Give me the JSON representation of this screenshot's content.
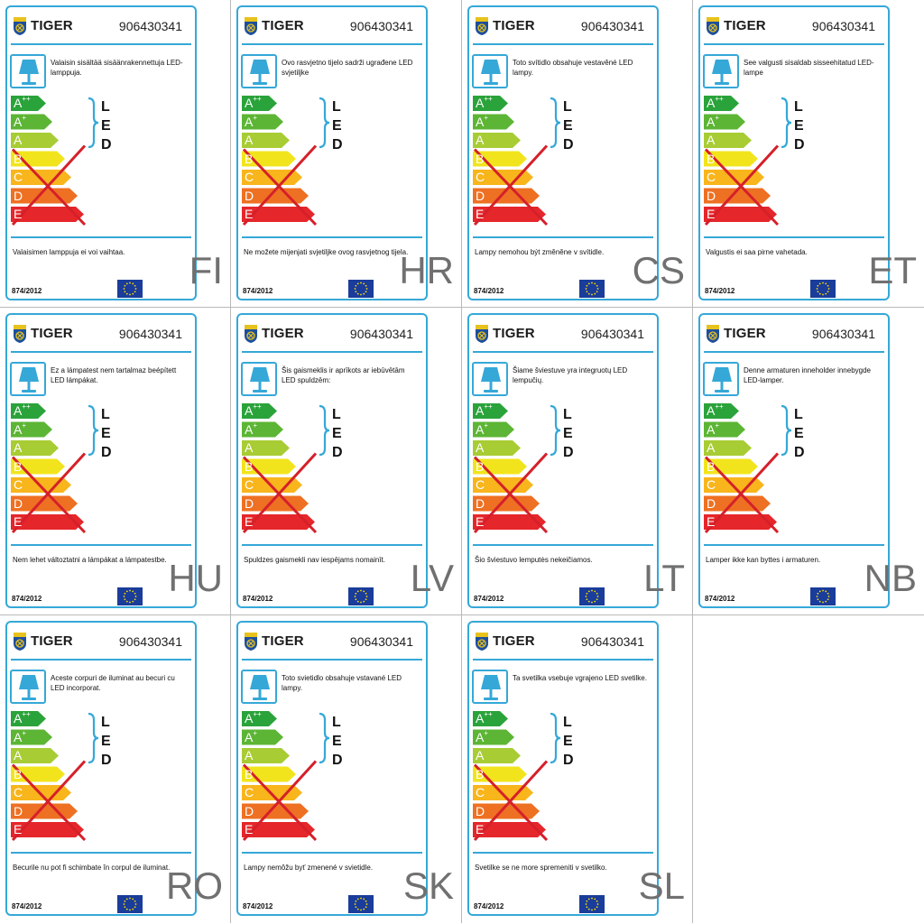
{
  "brand": "TIGER",
  "code": "906430341",
  "regulation": "874/2012",
  "led_letters": [
    "L",
    "E",
    "D"
  ],
  "classes": [
    {
      "letter": "A",
      "sup": "++",
      "color": "#2aa33a"
    },
    {
      "letter": "A",
      "sup": "+",
      "color": "#5cb534"
    },
    {
      "letter": "A",
      "sup": "",
      "color": "#a8cc34"
    },
    {
      "letter": "B",
      "sup": "",
      "color": "#f2e41c"
    },
    {
      "letter": "C",
      "sup": "",
      "color": "#f8b51c"
    },
    {
      "letter": "D",
      "sup": "",
      "color": "#ee7022"
    },
    {
      "letter": "E",
      "sup": "",
      "color": "#e5262a"
    }
  ],
  "colors": {
    "frame": "#35a8d8",
    "cross": "#d5202a",
    "eu_flag": "#1a3c9a",
    "eu_stars": "#ffde00"
  },
  "labels": [
    {
      "lang": "FI",
      "text": "Valaisin sisältää sisäänrakennettuja LED-lamppuja.",
      "notice": "Valaisimen lamppuja ei voi vaihtaa."
    },
    {
      "lang": "HR",
      "text": "Ovo rasvjetno tijelo sadrži ugrađene LED svjetiljke",
      "notice": "Ne možete mijenjati svjetiljke ovog rasvjetnog tijela."
    },
    {
      "lang": "CS",
      "text": "Toto svítidlo obsahuje vestavěné LED lampy.",
      "notice": "Lampy nemohou být změněne v svítidle."
    },
    {
      "lang": "ET",
      "text": "See valgusti sisaldab sisseehitatud LED-lampe",
      "notice": "Valgustis ei saa pirne vahetada."
    },
    {
      "lang": "HU",
      "text": "Ez a lámpatest nem tartalmaz beépített LED lámpákat.",
      "notice": "Nem lehet változtatni a lámpákat a lámpatestbe."
    },
    {
      "lang": "LV",
      "text": "Šis gaismeklis ir aprīkots ar iebūvētām LED spuldzēm:",
      "notice": "Spuldzes gaismekli nav iespējams nomainīt."
    },
    {
      "lang": "LT",
      "text": "Šiame šviestuve yra integruotų LED lempučių.",
      "notice": "Šio šviestuvo lemputės nekeičiamos."
    },
    {
      "lang": "NB",
      "text": "Denne armaturen inneholder innebygde LED-lamper.",
      "notice": "Lamper ikke kan byttes i armaturen."
    },
    {
      "lang": "RO",
      "text": "Aceste corpuri de iluminat au becuri cu LED incorporat.",
      "notice": "Becurile nu pot fi schimbate în corpul de iluminat."
    },
    {
      "lang": "SK",
      "text": "Toto svietidlo obsahuje vstavané LED lampy.",
      "notice": "Lampy nemôžu byť zmenené v svietidle."
    },
    {
      "lang": "SL",
      "text": "Ta svetilka vsebuje vgrajeno LED svetilke.",
      "notice": "Svetilke se ne more spremeniti v svetilko."
    }
  ]
}
